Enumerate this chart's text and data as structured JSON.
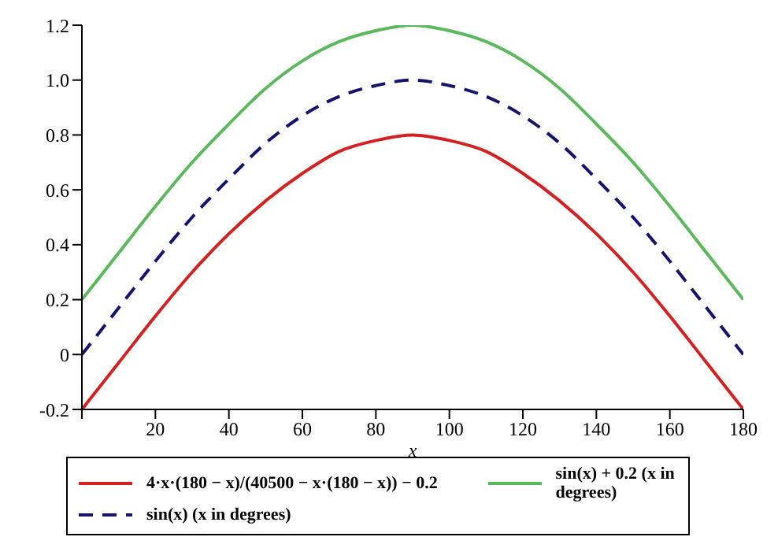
{
  "chart_data": {
    "type": "line",
    "xlabel": "x",
    "x": [
      0,
      10,
      20,
      30,
      40,
      50,
      60,
      70,
      80,
      90,
      100,
      110,
      120,
      130,
      140,
      150,
      160,
      170,
      180
    ],
    "series": [
      {
        "name": "4·x·(180 − x)/(40500 − x·(180 − x)) − 0.2",
        "color": "#d42020",
        "line_style": "solid",
        "values": [
          -0.2,
          -0.03,
          0.14,
          0.3,
          0.44,
          0.56,
          0.66,
          0.74,
          0.78,
          0.8,
          0.78,
          0.74,
          0.66,
          0.56,
          0.44,
          0.3,
          0.14,
          -0.03,
          -0.2
        ]
      },
      {
        "name": "sin(x) + 0.2 (x in degrees)",
        "color": "#5cb85c",
        "line_style": "solid",
        "values": [
          0.2,
          0.37,
          0.54,
          0.7,
          0.84,
          0.97,
          1.07,
          1.14,
          1.18,
          1.2,
          1.18,
          1.14,
          1.07,
          0.97,
          0.84,
          0.7,
          0.54,
          0.37,
          0.2
        ]
      },
      {
        "name": "sin(x) (x in degrees)",
        "color": "#14146e",
        "line_style": "dashed",
        "values": [
          0,
          0.17,
          0.34,
          0.5,
          0.64,
          0.77,
          0.87,
          0.94,
          0.98,
          1,
          0.98,
          0.94,
          0.87,
          0.77,
          0.64,
          0.5,
          0.34,
          0.17,
          0
        ]
      }
    ],
    "xlim": [
      0,
      180
    ],
    "xticks": [
      {
        "value": 0,
        "label": null
      },
      20,
      40,
      60,
      80,
      100,
      120,
      140,
      160,
      180
    ],
    "ylim": [
      -0.2,
      1.2
    ],
    "yticks": [
      -0.2,
      0,
      0.2,
      0.4,
      0.6,
      0.8,
      {
        "value": 1,
        "label": "1.0"
      },
      1.2
    ],
    "grid": false,
    "legend": "bottom",
    "marker": "none"
  }
}
